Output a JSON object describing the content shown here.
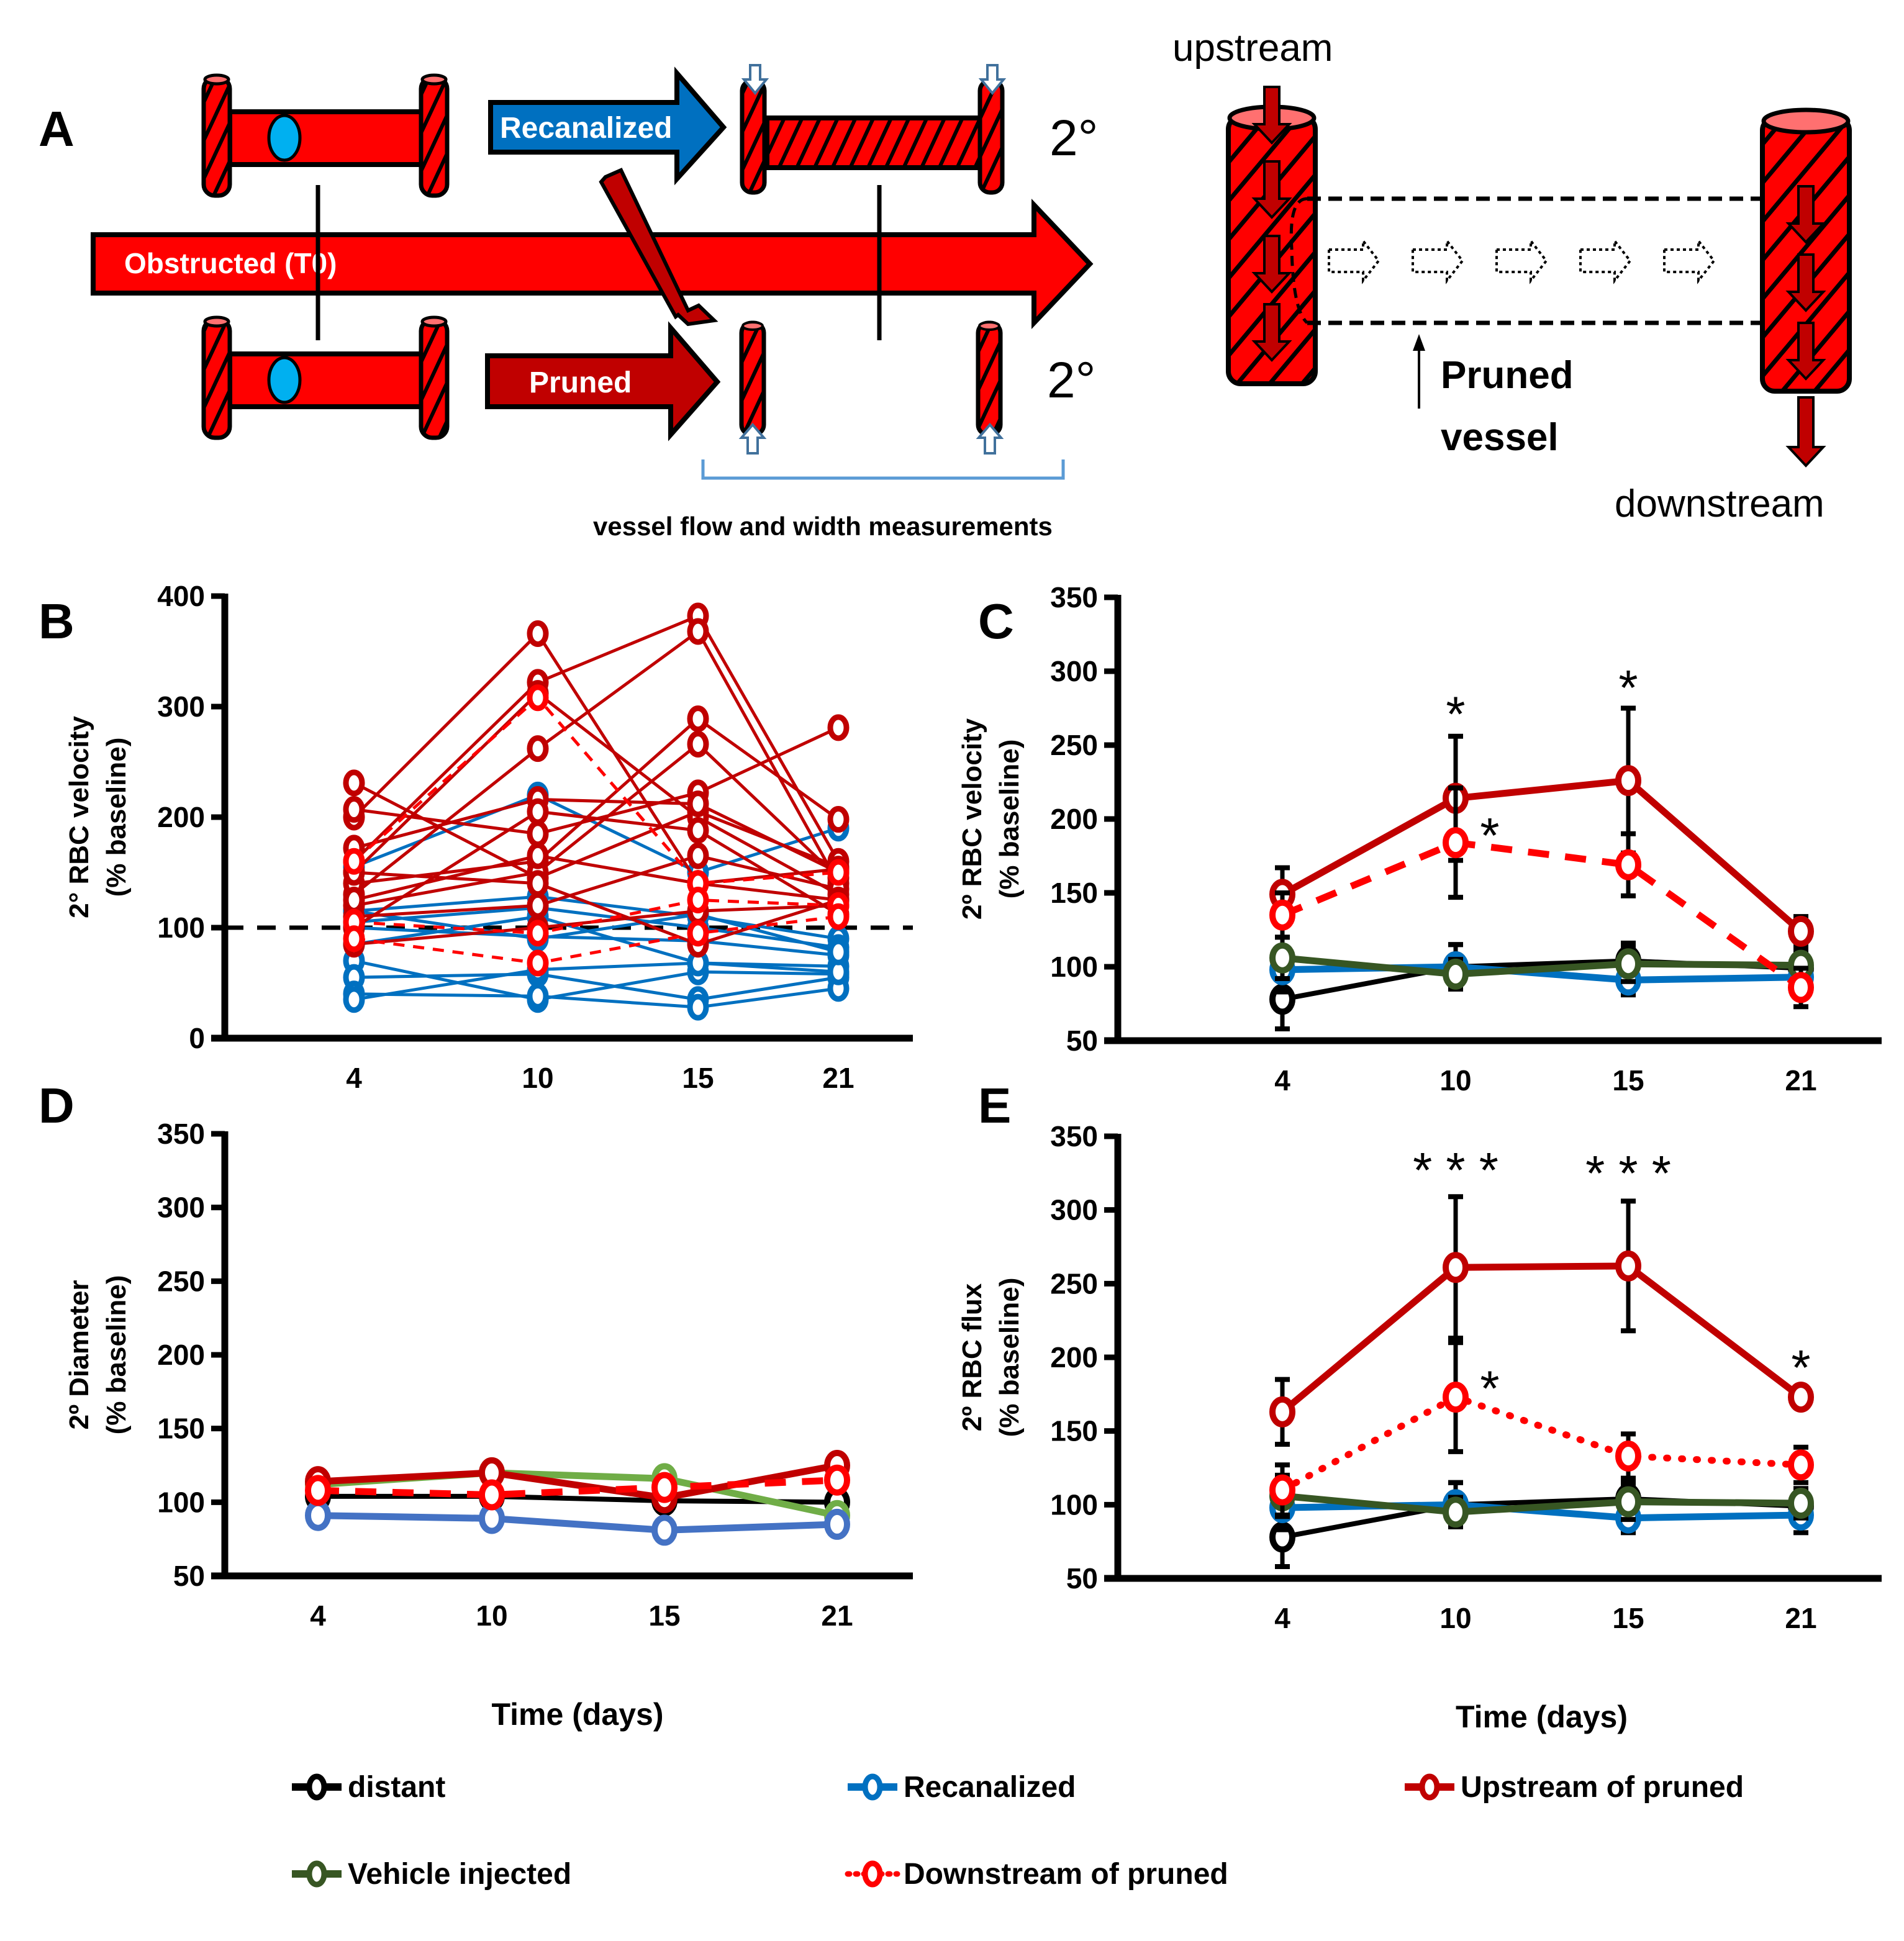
{
  "panel_labels": {
    "A": "A",
    "B": "B",
    "C": "C",
    "D": "D",
    "E": "E"
  },
  "diagram": {
    "obstructed_label": "Obstructed (T0)",
    "recanalized_label": "Recanalized",
    "pruned_label": "Pruned",
    "secondary_label_top": "2°",
    "secondary_label_bottom": "2°",
    "measurement_caption": "vessel flow and width measurements",
    "upstream_label": "upstream",
    "downstream_label": "downstream",
    "pruned_vessel_label_line1": "Pruned",
    "pruned_vessel_label_line2": "vessel",
    "colors": {
      "vessel_red": "#ff0000",
      "dark_red": "#c00000",
      "blue": "#0070c0",
      "clot": "#00b0f0",
      "lumen_pink": "#ff7070"
    }
  },
  "legend": {
    "items": [
      {
        "key": "distant",
        "label": "distant",
        "color": "#000000",
        "style": "solid"
      },
      {
        "key": "recanalized",
        "label": "Recanalized",
        "color": "#0070c0",
        "style": "solid"
      },
      {
        "key": "upstream",
        "label": "Upstream of pruned",
        "color": "#c00000",
        "style": "solid"
      },
      {
        "key": "vehicle",
        "label": "Vehicle injected",
        "color": "#375623",
        "style": "solid"
      },
      {
        "key": "downstream",
        "label": "Downstream of pruned",
        "color": "#ff0000",
        "style": "dotted"
      }
    ]
  },
  "chart_data": [
    {
      "id": "B",
      "type": "line",
      "title": "",
      "ylabel_line1": "2°  RBC velocity",
      "ylabel_line2": "(% baseline)",
      "xlabel": "",
      "x": [
        "4",
        "10",
        "15",
        "21"
      ],
      "ylim": [
        0,
        400
      ],
      "yticks": [
        "0",
        "100",
        "200",
        "300",
        "400"
      ],
      "reference_line": 100,
      "series": [
        {
          "group": "upstream",
          "style": "solid",
          "values": [
            231,
            145,
            205,
            155
          ]
        },
        {
          "group": "upstream",
          "style": "solid",
          "values": [
            200,
            366,
            140,
            125
          ]
        },
        {
          "group": "upstream",
          "style": "solid",
          "values": [
            160,
            322,
            382,
            160
          ]
        },
        {
          "group": "upstream",
          "style": "solid",
          "values": [
            150,
            312,
            200,
            130
          ]
        },
        {
          "group": "upstream",
          "style": "solid",
          "values": [
            130,
            262,
            368,
            140
          ]
        },
        {
          "group": "upstream",
          "style": "solid",
          "values": [
            207,
            185,
            222,
            281
          ]
        },
        {
          "group": "upstream",
          "style": "solid",
          "values": [
            172,
            216,
            212,
            150
          ]
        },
        {
          "group": "upstream",
          "style": "solid",
          "values": [
            140,
            160,
            289,
            198
          ]
        },
        {
          "group": "upstream",
          "style": "solid",
          "values": [
            120,
            150,
            266,
            145
          ]
        },
        {
          "group": "upstream",
          "style": "solid",
          "values": [
            110,
            120,
            165,
            135
          ]
        },
        {
          "group": "upstream",
          "style": "solid",
          "values": [
            100,
            205,
            188,
            112
          ]
        },
        {
          "group": "upstream",
          "style": "solid",
          "values": [
            125,
            165,
            140,
            153
          ]
        },
        {
          "group": "upstream",
          "style": "solid",
          "values": [
            150,
            140,
            85,
            125
          ]
        },
        {
          "group": "upstream",
          "style": "solid",
          "values": [
            85,
            100,
            115,
            120
          ]
        },
        {
          "group": "downstream",
          "style": "dashed",
          "values": [
            160,
            308,
            140,
            150
          ]
        },
        {
          "group": "downstream",
          "style": "dashed",
          "values": [
            105,
            95,
            125,
            120
          ]
        },
        {
          "group": "downstream",
          "style": "dashed",
          "values": [
            90,
            68,
            95,
            110
          ]
        },
        {
          "group": "recanalized",
          "style": "solid",
          "values": [
            155,
            220,
            150,
            190
          ]
        },
        {
          "group": "recanalized",
          "style": "solid",
          "values": [
            115,
            128,
            110,
            90
          ]
        },
        {
          "group": "recanalized",
          "style": "solid",
          "values": [
            105,
            118,
            100,
            82
          ]
        },
        {
          "group": "recanalized",
          "style": "solid",
          "values": [
            100,
            92,
            88,
            75
          ]
        },
        {
          "group": "recanalized",
          "style": "solid",
          "values": [
            85,
            110,
            68,
            65
          ]
        },
        {
          "group": "recanalized",
          "style": "solid",
          "values": [
            70,
            35,
            60,
            58
          ]
        },
        {
          "group": "recanalized",
          "style": "solid",
          "values": [
            55,
            58,
            35,
            55
          ]
        },
        {
          "group": "recanalized",
          "style": "solid",
          "values": [
            40,
            38,
            28,
            45
          ]
        },
        {
          "group": "recanalized",
          "style": "solid",
          "values": [
            35,
            62,
            68,
            60
          ]
        },
        {
          "group": "recanalized",
          "style": "solid",
          "values": [
            115,
            90,
            112,
            78
          ]
        }
      ]
    },
    {
      "id": "C",
      "type": "line",
      "ylabel_line1": "2º RBC velocity",
      "ylabel_line2": "(% baseline)",
      "xlabel": "",
      "x": [
        "4",
        "10",
        "15",
        "21"
      ],
      "ylim": [
        50,
        350
      ],
      "yticks": [
        "50",
        "100",
        "150",
        "200",
        "250",
        "300",
        "350"
      ],
      "series": [
        {
          "group": "distant",
          "name": "distant",
          "values": [
            78,
            100,
            104,
            99
          ],
          "err": [
            20,
            15,
            12,
            10
          ]
        },
        {
          "group": "recanalized",
          "name": "Recanalized",
          "values": [
            98,
            100,
            91,
            93
          ],
          "err": [
            15,
            15,
            10,
            10
          ]
        },
        {
          "group": "vehicle",
          "name": "Vehicle injected",
          "values": [
            106,
            95,
            102,
            101
          ],
          "err": [
            14,
            10,
            12,
            10
          ]
        },
        {
          "group": "upstream",
          "name": "Upstream of pruned",
          "values": [
            149,
            214,
            226,
            124
          ],
          "err": [
            18,
            42,
            49,
            10
          ]
        },
        {
          "group": "downstream",
          "name": "Downstream of pruned",
          "values": [
            135,
            184,
            169,
            86
          ],
          "err": [
            15,
            37,
            21,
            13
          ],
          "style": "dashed"
        }
      ],
      "annotations": [
        {
          "x": "10",
          "text": "*",
          "y": 272
        },
        {
          "x": "15",
          "text": "*",
          "y": 290
        },
        {
          "x": "10",
          "text": "*",
          "y": 190,
          "offset": "right"
        }
      ]
    },
    {
      "id": "D",
      "type": "line",
      "ylabel_line1": "2º  Diameter",
      "ylabel_line2": "(% baseline)",
      "xlabel": "Time (days)",
      "x": [
        "4",
        "10",
        "15",
        "21"
      ],
      "ylim": [
        50,
        350
      ],
      "yticks": [
        "50",
        "100",
        "150",
        "200",
        "250",
        "300",
        "350"
      ],
      "series": [
        {
          "group": "distant",
          "name": "distant",
          "values": [
            104,
            104,
            101,
            100
          ]
        },
        {
          "group": "vehicle_light",
          "name": "Vehicle injected",
          "values": [
            112,
            120,
            116,
            91
          ],
          "color": "#70ad47"
        },
        {
          "group": "recanalized_light",
          "name": "Recanalized",
          "values": [
            91,
            89,
            81,
            85
          ],
          "color": "#4472c4"
        },
        {
          "group": "upstream",
          "name": "Upstream of pruned",
          "values": [
            114,
            120,
            103,
            125
          ]
        },
        {
          "group": "downstream",
          "name": "Downstream of pruned",
          "values": [
            108,
            105,
            110,
            115
          ],
          "style": "dashed"
        }
      ],
      "annotations": []
    },
    {
      "id": "E",
      "type": "line",
      "ylabel_line1": "2º RBC flux",
      "ylabel_line2": "(% baseline)",
      "xlabel": "Time (days)",
      "x": [
        "4",
        "10",
        "15",
        "21"
      ],
      "ylim": [
        50,
        350
      ],
      "yticks": [
        "50",
        "100",
        "150",
        "200",
        "250",
        "300",
        "350"
      ],
      "series": [
        {
          "group": "distant",
          "name": "distant",
          "values": [
            78,
            100,
            104,
            99
          ],
          "err": [
            20,
            15,
            12,
            10
          ]
        },
        {
          "group": "recanalized",
          "name": "Recanalized",
          "values": [
            98,
            100,
            91,
            93
          ],
          "err": [
            15,
            15,
            10,
            12
          ]
        },
        {
          "group": "vehicle",
          "name": "Vehicle injected",
          "values": [
            106,
            95,
            102,
            101
          ],
          "err": [
            14,
            10,
            12,
            10
          ]
        },
        {
          "group": "upstream",
          "name": "Upstream of pruned",
          "values": [
            163,
            261,
            262,
            173
          ],
          "err": [
            22,
            48,
            44,
            7
          ]
        },
        {
          "group": "downstream",
          "name": "Downstream of pruned",
          "values": [
            110,
            173,
            133,
            127
          ],
          "err": [
            17,
            37,
            15,
            12
          ],
          "style": "dotted"
        }
      ],
      "annotations": [
        {
          "x": "10",
          "text": "* * *",
          "y": 328
        },
        {
          "x": "15",
          "text": "* * *",
          "y": 326
        },
        {
          "x": "21",
          "text": "*",
          "y": 194
        },
        {
          "x": "10",
          "text": "*",
          "y": 180,
          "offset": "right"
        }
      ]
    }
  ]
}
